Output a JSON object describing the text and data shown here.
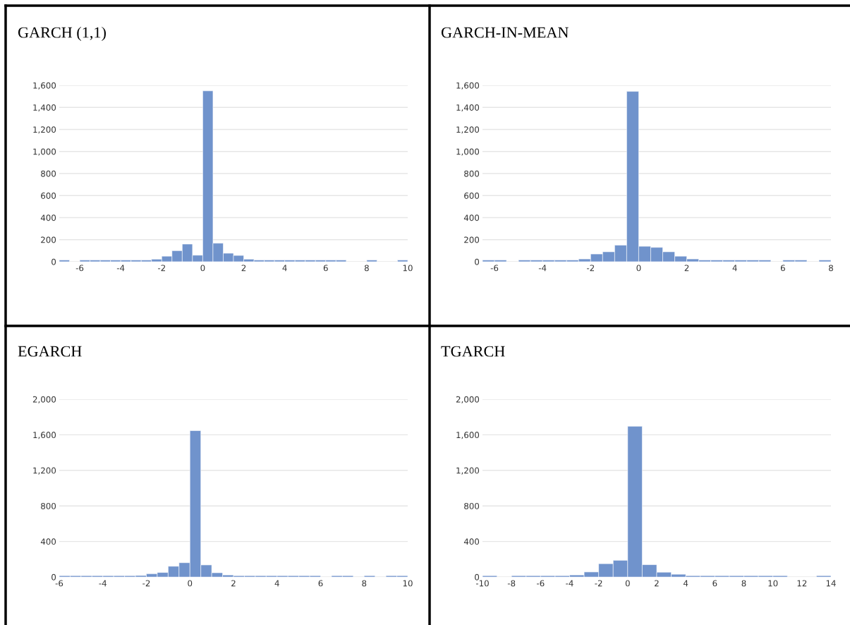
{
  "chart_data": [
    {
      "type": "histogram",
      "title": "GARCH (1,1)",
      "color": "#7093cc",
      "grid": "y",
      "bins": [
        -7,
        -6.5,
        -6,
        -5.5,
        -5,
        -4.5,
        -4,
        -3.5,
        -3,
        -2.5,
        -2,
        -1.5,
        -1,
        -0.5,
        0,
        0.5,
        1,
        1.5,
        2,
        2.5,
        3,
        3.5,
        4,
        4.5,
        5,
        5.5,
        6,
        6.5,
        7,
        7.5,
        8,
        8.5,
        9,
        9.5,
        10
      ],
      "values": [
        15,
        0,
        15,
        15,
        15,
        15,
        15,
        15,
        15,
        23,
        50,
        100,
        160,
        59,
        1550,
        168,
        77,
        57,
        23,
        15,
        15,
        15,
        15,
        15,
        15,
        15,
        15,
        15,
        0,
        0,
        15,
        0,
        0,
        15
      ],
      "xlim": [
        -7,
        10
      ],
      "xticks": [
        -6,
        -4,
        -2,
        0,
        2,
        4,
        6,
        8,
        10
      ],
      "ylim": [
        0,
        1600
      ],
      "yticks": [
        0,
        200,
        400,
        600,
        800,
        {
          "value": 1000,
          "label": "1,000"
        },
        {
          "value": 1200,
          "label": "1,200"
        },
        {
          "value": 1400,
          "label": "1,400"
        },
        {
          "value": 1600,
          "label": "1,600"
        }
      ]
    },
    {
      "type": "histogram",
      "title": "GARCH-IN-MEAN",
      "color": "#7093cc",
      "grid": "y",
      "bins": [
        -6.5,
        -6,
        -5.5,
        -5,
        -4.5,
        -4,
        -3.5,
        -3,
        -2.5,
        -2,
        -1.5,
        -1,
        -0.5,
        0,
        0.5,
        1,
        1.5,
        2,
        2.5,
        3,
        3.5,
        4,
        4.5,
        5,
        5.5,
        6,
        6.5,
        7,
        7.5,
        8
      ],
      "values": [
        15,
        15,
        0,
        15,
        15,
        15,
        15,
        15,
        25,
        70,
        90,
        150,
        1545,
        140,
        130,
        90,
        50,
        25,
        15,
        15,
        15,
        15,
        15,
        15,
        0,
        15,
        15,
        0,
        15
      ],
      "xlim": [
        -6.5,
        8
      ],
      "xticks": [
        -6,
        -4,
        -2,
        0,
        2,
        4,
        6,
        8
      ],
      "ylim": [
        0,
        1600
      ],
      "yticks": [
        0,
        200,
        400,
        600,
        800,
        {
          "value": 1000,
          "label": "1,000"
        },
        {
          "value": 1200,
          "label": "1,200"
        },
        {
          "value": 1400,
          "label": "1,400"
        },
        {
          "value": 1600,
          "label": "1,600"
        }
      ]
    },
    {
      "type": "histogram",
      "title": "EGARCH",
      "color": "#7093cc",
      "grid": "y",
      "bins": [
        -6,
        -5.5,
        -5,
        -4.5,
        -4,
        -3.5,
        -3,
        -2.5,
        -2,
        -1.5,
        -1,
        -0.5,
        0,
        0.5,
        1,
        1.5,
        2,
        2.5,
        3,
        3.5,
        4,
        4.5,
        5,
        5.5,
        6,
        6.5,
        7,
        7.5,
        8,
        8.5,
        9,
        9.5,
        10
      ],
      "values": [
        15,
        15,
        15,
        15,
        15,
        15,
        15,
        17,
        37,
        51,
        121,
        161,
        1647,
        136,
        48,
        23,
        15,
        15,
        15,
        15,
        15,
        15,
        15,
        15,
        0,
        15,
        15,
        0,
        15,
        0,
        15,
        15
      ],
      "xlim": [
        -6,
        10
      ],
      "xticks": [
        -6,
        -4,
        -2,
        0,
        2,
        4,
        6,
        8,
        10
      ],
      "ylim": [
        0,
        2000
      ],
      "yticks": [
        0,
        400,
        800,
        {
          "value": 1200,
          "label": "1,200"
        },
        {
          "value": 1600,
          "label": "1,600"
        },
        {
          "value": 2000,
          "label": "2,000"
        }
      ]
    },
    {
      "type": "histogram",
      "title": "TGARCH",
      "color": "#7093cc",
      "grid": "y",
      "bins": [
        -10,
        -9,
        -8,
        -7,
        -6,
        -5,
        -4,
        -3,
        -2,
        -1,
        0,
        1,
        2,
        3,
        4,
        5,
        6,
        7,
        8,
        9,
        10,
        11,
        12,
        13,
        14
      ],
      "values": [
        15,
        0,
        15,
        15,
        15,
        15,
        23,
        57,
        150,
        188,
        1696,
        139,
        54,
        31,
        15,
        15,
        15,
        15,
        15,
        15,
        15,
        0,
        0,
        15
      ],
      "xlim": [
        -10,
        14
      ],
      "xticks": [
        -10,
        -8,
        -6,
        -4,
        -2,
        0,
        2,
        4,
        6,
        8,
        10,
        12,
        14
      ],
      "ylim": [
        0,
        2000
      ],
      "yticks": [
        0,
        400,
        800,
        {
          "value": 1200,
          "label": "1,200"
        },
        {
          "value": 1600,
          "label": "1,600"
        },
        {
          "value": 2000,
          "label": "2,000"
        }
      ]
    }
  ]
}
